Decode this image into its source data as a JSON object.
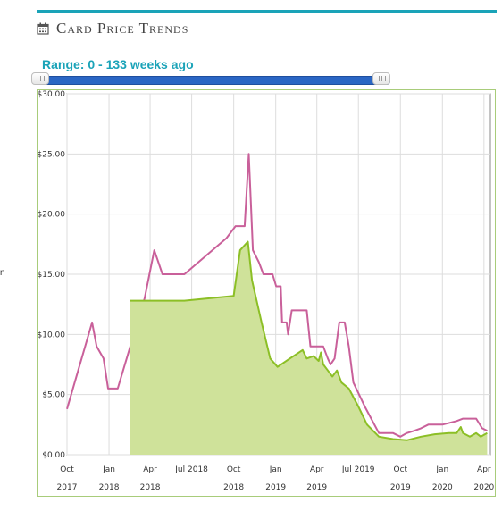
{
  "header": {
    "title": "Card Price Trends",
    "icon": "calendar-icon"
  },
  "range": {
    "label": "Range: 0 - 133 weeks ago"
  },
  "edge_text": "n",
  "colors": {
    "accent": "#1aa3b8",
    "slider": "#2a66c4",
    "series_pink": "#c9609a",
    "series_green": "#8cbf26",
    "area_fill": "#cfe29a"
  },
  "chart_data": {
    "type": "area",
    "title": "",
    "xlabel": "",
    "ylabel": "",
    "ylim": [
      0,
      30
    ],
    "y_ticks": [
      "$0.00",
      "$5.00",
      "$10.00",
      "$15.00",
      "$20.00",
      "$25.00",
      "$30.00"
    ],
    "y_values": [
      0,
      5,
      10,
      15,
      20,
      25,
      30
    ],
    "x_ticks": [
      {
        "month": "Oct",
        "year": "2017",
        "x": "2017-10"
      },
      {
        "month": "Jan",
        "year": "2018",
        "x": "2018-01"
      },
      {
        "month": "Apr",
        "year": "2018",
        "x": "2018-04"
      },
      {
        "month": "Jul 2018",
        "year": "",
        "x": "2018-07"
      },
      {
        "month": "Oct",
        "year": "2018",
        "x": "2018-10"
      },
      {
        "month": "Jan",
        "year": "2019",
        "x": "2019-01"
      },
      {
        "month": "Apr",
        "year": "2019",
        "x": "2019-04"
      },
      {
        "month": "Jul 2019",
        "year": "",
        "x": "2019-07"
      },
      {
        "month": "Oct",
        "year": "2019",
        "x": "2019-10"
      },
      {
        "month": "Jan",
        "year": "2020",
        "x": "2020-01"
      },
      {
        "month": "Apr",
        "year": "2020",
        "x": "2020-04"
      }
    ],
    "grid": true,
    "series": [
      {
        "color": "#c9609a",
        "points": [
          [
            "2017-10-01",
            3.8
          ],
          [
            "2017-11-25",
            11
          ],
          [
            "2017-12-05",
            9
          ],
          [
            "2017-12-20",
            8
          ],
          [
            "2017-12-30",
            5.5
          ],
          [
            "2018-01-20",
            5.5
          ],
          [
            "2018-03-20",
            13
          ],
          [
            "2018-04-10",
            17
          ],
          [
            "2018-04-28",
            15
          ],
          [
            "2018-06-15",
            15
          ],
          [
            "2018-09-15",
            18
          ],
          [
            "2018-10-05",
            19
          ],
          [
            "2018-10-25",
            19
          ],
          [
            "2018-11-03",
            25
          ],
          [
            "2018-11-12",
            17
          ],
          [
            "2018-11-25",
            16
          ],
          [
            "2018-12-05",
            15
          ],
          [
            "2018-12-25",
            15
          ],
          [
            "2019-01-02",
            14
          ],
          [
            "2019-01-12",
            14
          ],
          [
            "2019-01-15",
            11
          ],
          [
            "2019-01-25",
            11
          ],
          [
            "2019-01-28",
            10
          ],
          [
            "2019-02-05",
            12
          ],
          [
            "2019-02-25",
            12
          ],
          [
            "2019-03-10",
            12
          ],
          [
            "2019-03-18",
            9
          ],
          [
            "2019-04-15",
            9
          ],
          [
            "2019-04-25",
            8
          ],
          [
            "2019-05-01",
            7.5
          ],
          [
            "2019-05-10",
            8
          ],
          [
            "2019-05-20",
            11
          ],
          [
            "2019-06-01",
            11
          ],
          [
            "2019-06-10",
            9
          ],
          [
            "2019-06-20",
            6
          ],
          [
            "2019-07-15",
            4
          ],
          [
            "2019-08-15",
            1.8
          ],
          [
            "2019-09-15",
            1.8
          ],
          [
            "2019-10-01",
            1.5
          ],
          [
            "2019-10-15",
            1.8
          ],
          [
            "2019-11-01",
            2
          ],
          [
            "2019-11-15",
            2.2
          ],
          [
            "2019-12-01",
            2.5
          ],
          [
            "2019-12-15",
            2.5
          ],
          [
            "2020-01-01",
            2.5
          ],
          [
            "2020-02-01",
            2.8
          ],
          [
            "2020-02-15",
            3
          ],
          [
            "2020-03-15",
            3
          ],
          [
            "2020-03-28",
            2.2
          ],
          [
            "2020-04-08",
            2
          ]
        ]
      },
      {
        "color": "#8cbf26",
        "fill": "#cfe29a",
        "points": [
          [
            "2018-02-15",
            12.8
          ],
          [
            "2018-06-15",
            12.8
          ],
          [
            "2018-10-01",
            13.2
          ],
          [
            "2018-10-15",
            17
          ],
          [
            "2018-11-01",
            17.7
          ],
          [
            "2018-11-10",
            14.5
          ],
          [
            "2018-12-01",
            11
          ],
          [
            "2018-12-20",
            8
          ],
          [
            "2019-01-05",
            7.3
          ],
          [
            "2019-02-01",
            8
          ],
          [
            "2019-03-01",
            8.7
          ],
          [
            "2019-03-10",
            8
          ],
          [
            "2019-03-25",
            8.2
          ],
          [
            "2019-04-05",
            7.8
          ],
          [
            "2019-04-10",
            8.5
          ],
          [
            "2019-04-15",
            7.5
          ],
          [
            "2019-04-25",
            7
          ],
          [
            "2019-05-05",
            6.5
          ],
          [
            "2019-05-15",
            7
          ],
          [
            "2019-05-25",
            6
          ],
          [
            "2019-06-10",
            5.5
          ],
          [
            "2019-07-01",
            4
          ],
          [
            "2019-07-20",
            2.5
          ],
          [
            "2019-08-15",
            1.5
          ],
          [
            "2019-09-15",
            1.3
          ],
          [
            "2019-10-15",
            1.2
          ],
          [
            "2019-11-15",
            1.5
          ],
          [
            "2019-12-15",
            1.7
          ],
          [
            "2020-01-15",
            1.8
          ],
          [
            "2020-02-01",
            1.8
          ],
          [
            "2020-02-10",
            2.3
          ],
          [
            "2020-02-15",
            1.8
          ],
          [
            "2020-03-01",
            1.5
          ],
          [
            "2020-03-15",
            1.8
          ],
          [
            "2020-03-25",
            1.5
          ],
          [
            "2020-04-08",
            1.8
          ]
        ]
      }
    ]
  }
}
